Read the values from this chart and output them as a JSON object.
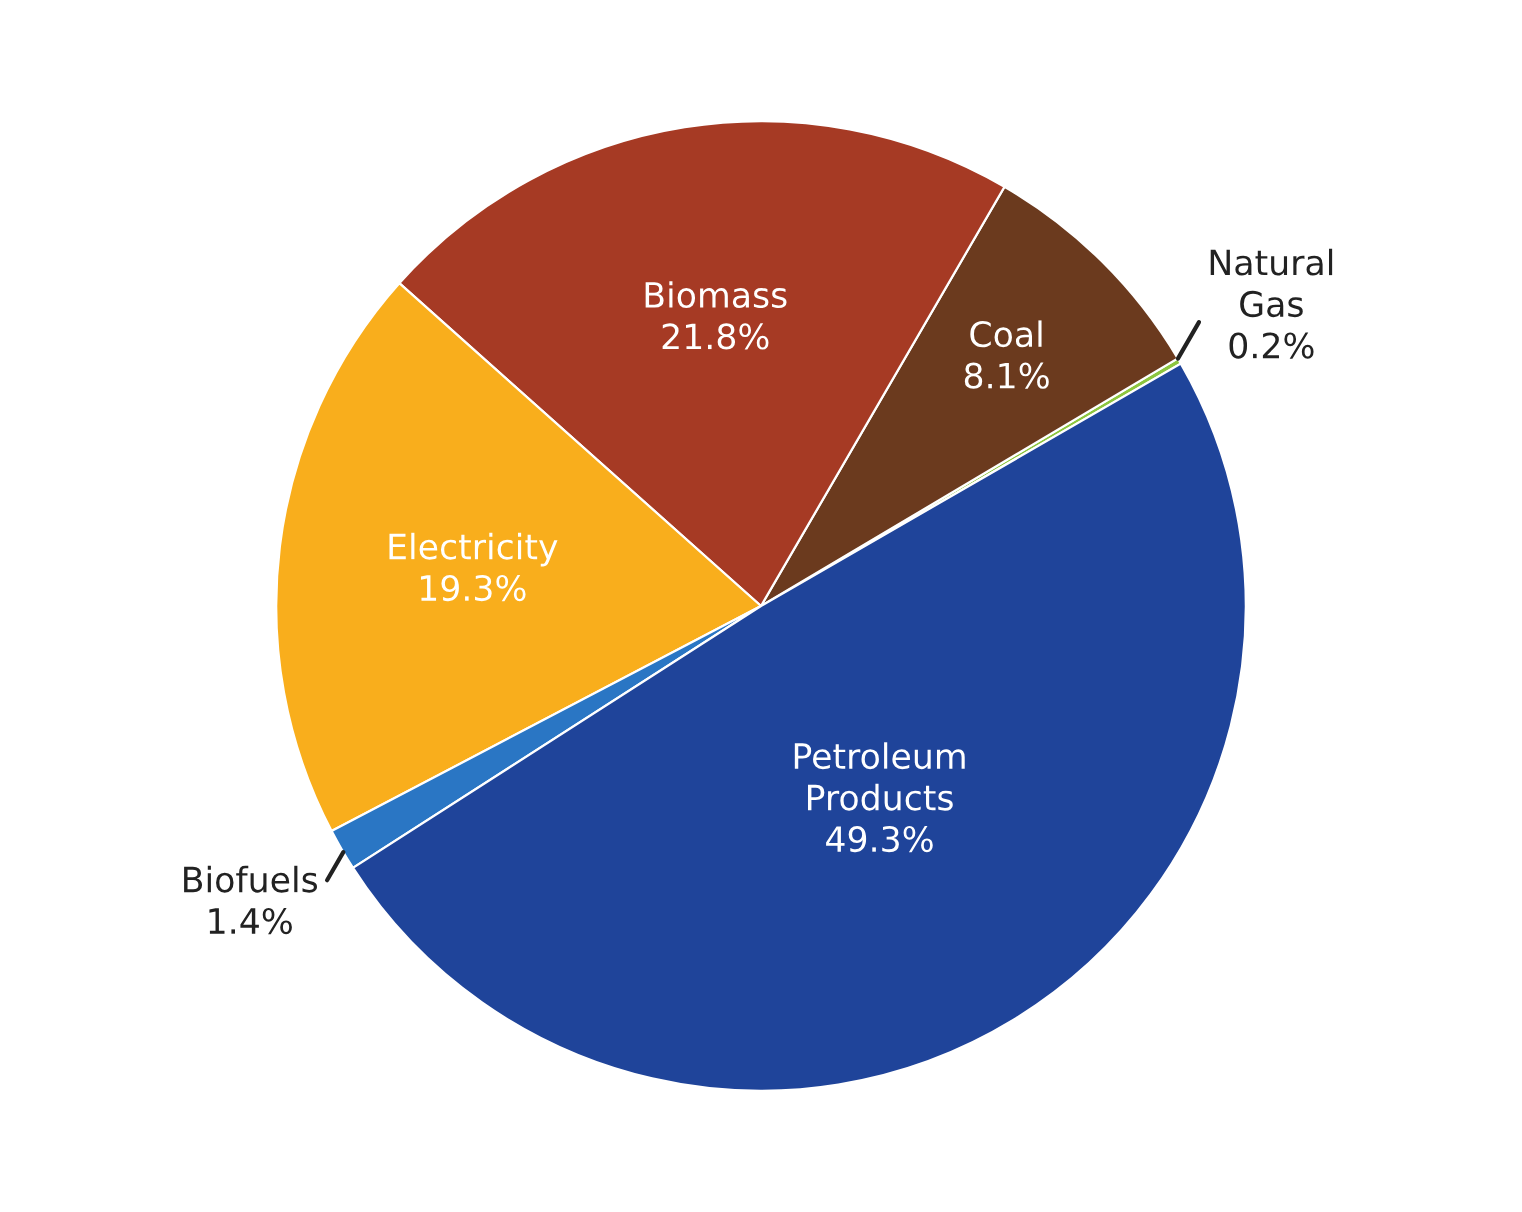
{
  "chart_data": {
    "type": "pie",
    "categories": [
      "Natural Gas",
      "Coal",
      "Biomass",
      "Electricity",
      "Biofuels",
      "Petroleum Products"
    ],
    "values": [
      0.2,
      8.1,
      21.8,
      19.3,
      1.4,
      49.3
    ],
    "value_labels": [
      "0.2%",
      "8.1%",
      "21.8%",
      "19.3%",
      "1.4%",
      "49.3%"
    ],
    "colors": [
      "#8dc63f",
      "#6b3a1e",
      "#a63a24",
      "#f9ae1c",
      "#2a76c4",
      "#1f449a"
    ]
  }
}
